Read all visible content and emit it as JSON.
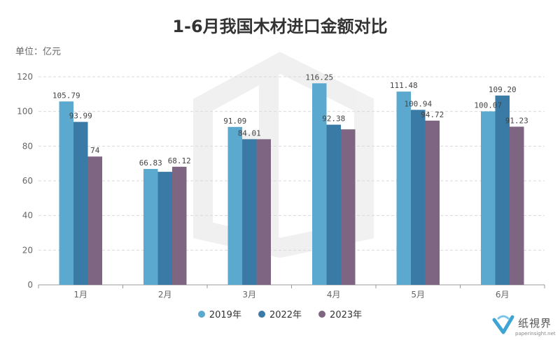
{
  "header": {
    "title": "1-6月我国木材进口金额对比",
    "unit": "单位：亿元"
  },
  "colors": {
    "2019年": "#5ba9cf",
    "2022年": "#3a7aa6",
    "2023年": "#7e6682"
  },
  "chart_data": {
    "type": "bar",
    "title": "1-6月我国木材进口金额对比",
    "ylabel": "单位：亿元",
    "categories": [
      "1月",
      "2月",
      "3月",
      "4月",
      "5月",
      "6月"
    ],
    "series": [
      {
        "name": "2019年",
        "values": [
          105.79,
          66.83,
          91.09,
          116.25,
          111.48,
          100.07
        ],
        "labels": [
          "105.79",
          "66.83",
          "91.09",
          "116.25",
          "111.48",
          "100.07"
        ]
      },
      {
        "name": "2022年",
        "values": [
          93.99,
          65.2,
          84.01,
          92.38,
          100.94,
          109.2
        ],
        "labels": [
          "93.99",
          "",
          "84.01",
          "92.38",
          "100.94",
          "109.20"
        ]
      },
      {
        "name": "2023年",
        "values": [
          74,
          68.12,
          84.0,
          89.7,
          94.72,
          91.23
        ],
        "labels": [
          "74",
          "68.12",
          "",
          "",
          "94.72",
          "91.23"
        ]
      }
    ],
    "ylim": [
      0,
      120
    ],
    "yticks": [
      0,
      20,
      40,
      60,
      80,
      100,
      120
    ],
    "grid": true,
    "legend": "bottom-center"
  },
  "brand": {
    "name": "纸視界",
    "url": "paperinsight.net"
  }
}
